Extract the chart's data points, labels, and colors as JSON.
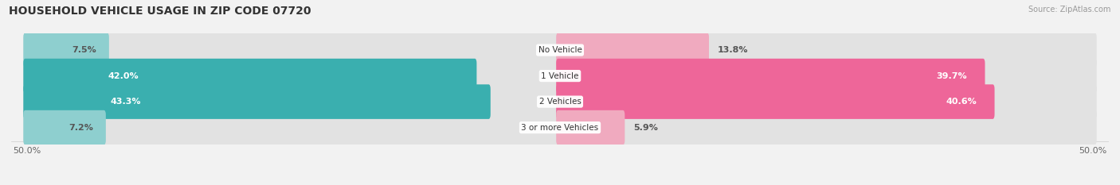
{
  "title": "HOUSEHOLD VEHICLE USAGE IN ZIP CODE 07720",
  "source": "Source: ZipAtlas.com",
  "categories": [
    "No Vehicle",
    "1 Vehicle",
    "2 Vehicles",
    "3 or more Vehicles"
  ],
  "owner_values": [
    7.5,
    42.0,
    43.3,
    7.2
  ],
  "renter_values": [
    13.8,
    39.7,
    40.6,
    5.9
  ],
  "owner_color_dark": "#3AAFAF",
  "owner_color_light": "#8ECFCF",
  "renter_color_dark": "#EE6699",
  "renter_color_light": "#F0AABF",
  "bg_color": "#F2F2F2",
  "bar_bg_color": "#E2E2E2",
  "max_val": 50.0,
  "title_fontsize": 10,
  "source_fontsize": 7,
  "axis_fontsize": 8,
  "label_fontsize": 8,
  "category_fontsize": 7.5,
  "legend_fontsize": 8
}
